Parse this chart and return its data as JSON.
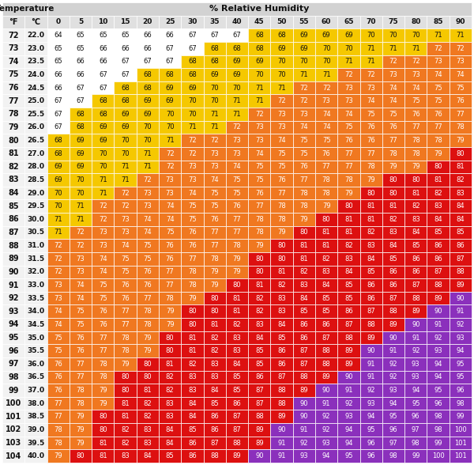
{
  "temp_f": [
    72,
    73,
    74,
    75,
    76,
    77,
    78,
    79,
    80,
    81,
    82,
    83,
    84,
    85,
    86,
    87,
    88,
    89,
    90,
    91,
    92,
    93,
    94,
    95,
    96,
    97,
    98,
    99,
    100,
    101,
    102,
    103,
    104
  ],
  "temp_c": [
    "22.0",
    "23.0",
    "23.5",
    "24.0",
    "24.5",
    "25.0",
    "25.5",
    "26.0",
    "26.5",
    "27.0",
    "28.0",
    "28.5",
    "29.0",
    "29.5",
    "30.0",
    "30.5",
    "31.0",
    "31.5",
    "32.0",
    "33.0",
    "33.5",
    "34.0",
    "34.5",
    "35.0",
    "35.5",
    "36.0",
    "36.5",
    "37.0",
    "38.0",
    "38.5",
    "39.0",
    "39.5",
    "40.0"
  ],
  "humidity": [
    0,
    5,
    10,
    15,
    20,
    25,
    30,
    35,
    40,
    45,
    50,
    55,
    60,
    65,
    70,
    75,
    80,
    85,
    90
  ],
  "table_data": [
    [
      64,
      65,
      65,
      65,
      66,
      66,
      67,
      67,
      67,
      68,
      68,
      69,
      69,
      69,
      70,
      70,
      70,
      71,
      71
    ],
    [
      65,
      65,
      66,
      66,
      66,
      67,
      67,
      68,
      68,
      68,
      69,
      69,
      70,
      70,
      71,
      71,
      71,
      72,
      72
    ],
    [
      65,
      66,
      66,
      67,
      67,
      67,
      68,
      68,
      69,
      69,
      70,
      70,
      70,
      71,
      71,
      72,
      72,
      73,
      73
    ],
    [
      66,
      66,
      67,
      67,
      68,
      68,
      68,
      69,
      69,
      70,
      70,
      71,
      71,
      72,
      72,
      73,
      73,
      74,
      74
    ],
    [
      66,
      67,
      67,
      68,
      68,
      69,
      69,
      70,
      70,
      71,
      71,
      72,
      72,
      73,
      73,
      74,
      74,
      75,
      75
    ],
    [
      67,
      67,
      68,
      68,
      69,
      69,
      70,
      70,
      71,
      71,
      72,
      72,
      73,
      73,
      74,
      74,
      75,
      75,
      76
    ],
    [
      67,
      68,
      68,
      69,
      69,
      70,
      70,
      71,
      71,
      72,
      73,
      73,
      74,
      74,
      75,
      75,
      76,
      76,
      77
    ],
    [
      67,
      68,
      69,
      69,
      70,
      70,
      71,
      71,
      72,
      73,
      73,
      74,
      74,
      75,
      76,
      76,
      77,
      77,
      78
    ],
    [
      68,
      69,
      69,
      70,
      70,
      71,
      72,
      72,
      73,
      73,
      74,
      75,
      75,
      76,
      76,
      77,
      78,
      78,
      79
    ],
    [
      68,
      69,
      70,
      70,
      71,
      72,
      72,
      73,
      73,
      74,
      75,
      75,
      76,
      77,
      77,
      78,
      78,
      79,
      80
    ],
    [
      69,
      69,
      70,
      71,
      71,
      72,
      73,
      73,
      74,
      75,
      75,
      76,
      77,
      77,
      78,
      79,
      79,
      80,
      81
    ],
    [
      69,
      70,
      71,
      71,
      72,
      73,
      73,
      74,
      75,
      75,
      76,
      77,
      78,
      78,
      79,
      80,
      80,
      81,
      82
    ],
    [
      70,
      70,
      71,
      72,
      73,
      73,
      74,
      75,
      75,
      76,
      77,
      78,
      78,
      79,
      80,
      80,
      81,
      82,
      83
    ],
    [
      70,
      71,
      72,
      72,
      73,
      74,
      75,
      75,
      76,
      77,
      78,
      78,
      79,
      80,
      81,
      81,
      82,
      83,
      84
    ],
    [
      71,
      71,
      72,
      73,
      74,
      74,
      75,
      76,
      77,
      78,
      78,
      79,
      80,
      81,
      81,
      82,
      83,
      84,
      84
    ],
    [
      71,
      72,
      73,
      73,
      74,
      75,
      76,
      77,
      77,
      78,
      79,
      80,
      81,
      81,
      82,
      83,
      84,
      85,
      85
    ],
    [
      72,
      72,
      73,
      74,
      75,
      76,
      76,
      77,
      78,
      79,
      80,
      81,
      81,
      82,
      83,
      84,
      85,
      86,
      86
    ],
    [
      72,
      73,
      74,
      75,
      75,
      76,
      77,
      78,
      79,
      80,
      80,
      81,
      82,
      83,
      84,
      85,
      86,
      86,
      87
    ],
    [
      72,
      73,
      74,
      75,
      76,
      77,
      78,
      79,
      79,
      80,
      81,
      82,
      83,
      84,
      85,
      86,
      86,
      87,
      88
    ],
    [
      73,
      74,
      75,
      76,
      76,
      77,
      78,
      79,
      80,
      81,
      82,
      83,
      84,
      85,
      86,
      86,
      87,
      88,
      89
    ],
    [
      73,
      74,
      75,
      76,
      77,
      78,
      79,
      80,
      81,
      82,
      83,
      84,
      85,
      85,
      86,
      87,
      88,
      89,
      90
    ],
    [
      74,
      75,
      76,
      77,
      78,
      79,
      80,
      80,
      81,
      82,
      83,
      85,
      85,
      86,
      87,
      88,
      89,
      90,
      91
    ],
    [
      74,
      75,
      76,
      77,
      78,
      79,
      80,
      81,
      82,
      83,
      84,
      86,
      86,
      87,
      88,
      89,
      90,
      91,
      92
    ],
    [
      75,
      76,
      77,
      78,
      79,
      80,
      81,
      82,
      83,
      84,
      85,
      86,
      87,
      88,
      89,
      90,
      91,
      92,
      93
    ],
    [
      75,
      76,
      77,
      78,
      79,
      80,
      81,
      82,
      83,
      85,
      86,
      87,
      88,
      89,
      90,
      91,
      92,
      93,
      94
    ],
    [
      76,
      77,
      78,
      79,
      80,
      81,
      82,
      83,
      84,
      85,
      86,
      87,
      88,
      89,
      91,
      92,
      93,
      94,
      95
    ],
    [
      76,
      77,
      78,
      80,
      80,
      82,
      83,
      83,
      85,
      86,
      87,
      88,
      89,
      90,
      91,
      92,
      93,
      94,
      95
    ],
    [
      76,
      78,
      79,
      80,
      81,
      82,
      83,
      84,
      85,
      87,
      88,
      89,
      90,
      91,
      92,
      93,
      94,
      95,
      96
    ],
    [
      77,
      78,
      79,
      81,
      82,
      83,
      84,
      85,
      86,
      87,
      88,
      90,
      91,
      92,
      93,
      94,
      95,
      96,
      98
    ],
    [
      77,
      79,
      80,
      81,
      82,
      83,
      84,
      86,
      87,
      88,
      89,
      90,
      92,
      93,
      94,
      95,
      96,
      98,
      99
    ],
    [
      78,
      79,
      80,
      82,
      83,
      84,
      85,
      86,
      87,
      89,
      90,
      91,
      92,
      94,
      95,
      96,
      97,
      98,
      100
    ],
    [
      78,
      79,
      81,
      82,
      83,
      84,
      86,
      87,
      88,
      89,
      91,
      92,
      93,
      94,
      96,
      97,
      98,
      99,
      101
    ],
    [
      79,
      80,
      81,
      83,
      84,
      85,
      86,
      88,
      89,
      90,
      91,
      93,
      94,
      95,
      96,
      98,
      99,
      100,
      101
    ]
  ],
  "header1_bg": "#d2d2d2",
  "header2_bg": "#e0e0e0",
  "temp_col_bg": "#f2f2f2",
  "white": "#ffffff",
  "yellow": "#f5c800",
  "orange": "#f07820",
  "red": "#dd1010",
  "purple": "#8b30bc",
  "border_color": "#ffffff",
  "text_dark": "#111111",
  "text_white": "#ffffff",
  "text_yellow": "#222222"
}
